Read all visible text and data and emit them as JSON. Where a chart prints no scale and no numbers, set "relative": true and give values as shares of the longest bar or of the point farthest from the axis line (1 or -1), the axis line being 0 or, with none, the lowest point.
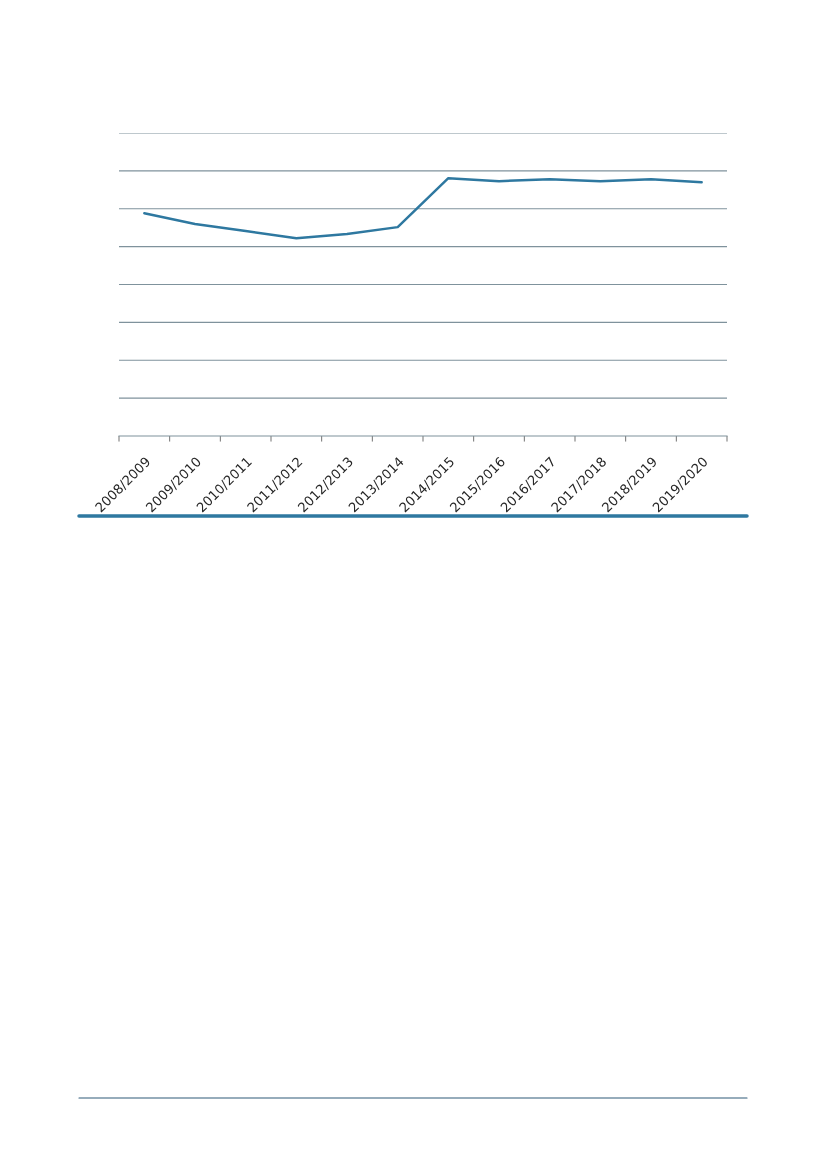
{
  "chart_data": {
    "type": "line",
    "relative": true,
    "grid": "y",
    "categories": [
      "2008/2009",
      "2009/2010",
      "2010/2011",
      "2011/2012",
      "2012/2013",
      "2013/2014",
      "2014/2015",
      "2015/2016",
      "2016/2017",
      "2017/2018",
      "2018/2019",
      "2019/2020"
    ],
    "series": [
      {
        "color": "#2e78a0",
        "values": [
          0.864,
          0.822,
          0.795,
          0.767,
          0.783,
          0.81,
          1,
          0.988,
          0.996,
          0.988,
          0.996,
          0.984
        ]
      }
    ],
    "marker": "none",
    "line_style": "solid"
  }
}
